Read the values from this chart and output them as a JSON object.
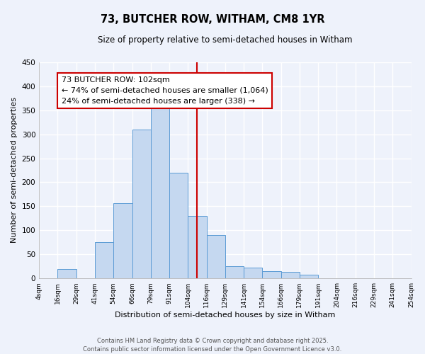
{
  "title": "73, BUTCHER ROW, WITHAM, CM8 1YR",
  "subtitle": "Size of property relative to semi-detached houses in Witham",
  "xlabel": "Distribution of semi-detached houses by size in Witham",
  "ylabel": "Number of semi-detached properties",
  "bin_labels": [
    "4sqm",
    "16sqm",
    "29sqm",
    "41sqm",
    "54sqm",
    "66sqm",
    "79sqm",
    "91sqm",
    "104sqm",
    "116sqm",
    "129sqm",
    "141sqm",
    "154sqm",
    "166sqm",
    "179sqm",
    "191sqm",
    "204sqm",
    "216sqm",
    "229sqm",
    "241sqm",
    "254sqm"
  ],
  "bar_heights": [
    0,
    20,
    0,
    75,
    157,
    310,
    358,
    220,
    130,
    90,
    25,
    22,
    15,
    13,
    7,
    0,
    0,
    0,
    0,
    0
  ],
  "bar_color": "#c5d8f0",
  "bar_edge_color": "#5b9bd5",
  "vline_position": 8.5,
  "vline_color": "#cc0000",
  "annotation_text": "73 BUTCHER ROW: 102sqm\n← 74% of semi-detached houses are smaller (1,064)\n24% of semi-detached houses are larger (338) →",
  "annotation_box_edge": "#cc0000",
  "ylim": [
    0,
    450
  ],
  "yticks": [
    0,
    50,
    100,
    150,
    200,
    250,
    300,
    350,
    400,
    450
  ],
  "background_color": "#eef2fb",
  "grid_color": "#ffffff",
  "footer_line1": "Contains HM Land Registry data © Crown copyright and database right 2025.",
  "footer_line2": "Contains public sector information licensed under the Open Government Licence v3.0."
}
